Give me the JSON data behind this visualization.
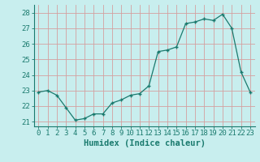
{
  "x": [
    0,
    1,
    2,
    3,
    4,
    5,
    6,
    7,
    8,
    9,
    10,
    11,
    12,
    13,
    14,
    15,
    16,
    17,
    18,
    19,
    20,
    21,
    22,
    23
  ],
  "y": [
    22.9,
    23.0,
    22.7,
    21.9,
    21.1,
    21.2,
    21.5,
    21.5,
    22.2,
    22.4,
    22.7,
    22.8,
    23.3,
    25.5,
    25.6,
    25.8,
    27.3,
    27.4,
    27.6,
    27.5,
    27.9,
    27.0,
    24.2,
    22.9
  ],
  "line_color": "#1a7a6e",
  "marker_color": "#1a7a6e",
  "bg_color": "#c8eeee",
  "grid_color": "#d4a0a0",
  "axis_color": "#1a7a6e",
  "tick_color": "#1a7a6e",
  "xlabel": "Humidex (Indice chaleur)",
  "ylim": [
    20.7,
    28.5
  ],
  "yticks": [
    21,
    22,
    23,
    24,
    25,
    26,
    27,
    28
  ],
  "xlim": [
    -0.5,
    23.5
  ],
  "xtick_labels": [
    "0",
    "1",
    "2",
    "3",
    "4",
    "5",
    "6",
    "7",
    "8",
    "9",
    "10",
    "11",
    "12",
    "13",
    "14",
    "15",
    "16",
    "17",
    "18",
    "19",
    "20",
    "21",
    "22",
    "23"
  ],
  "font_size": 6.5,
  "label_font_size": 7.5
}
